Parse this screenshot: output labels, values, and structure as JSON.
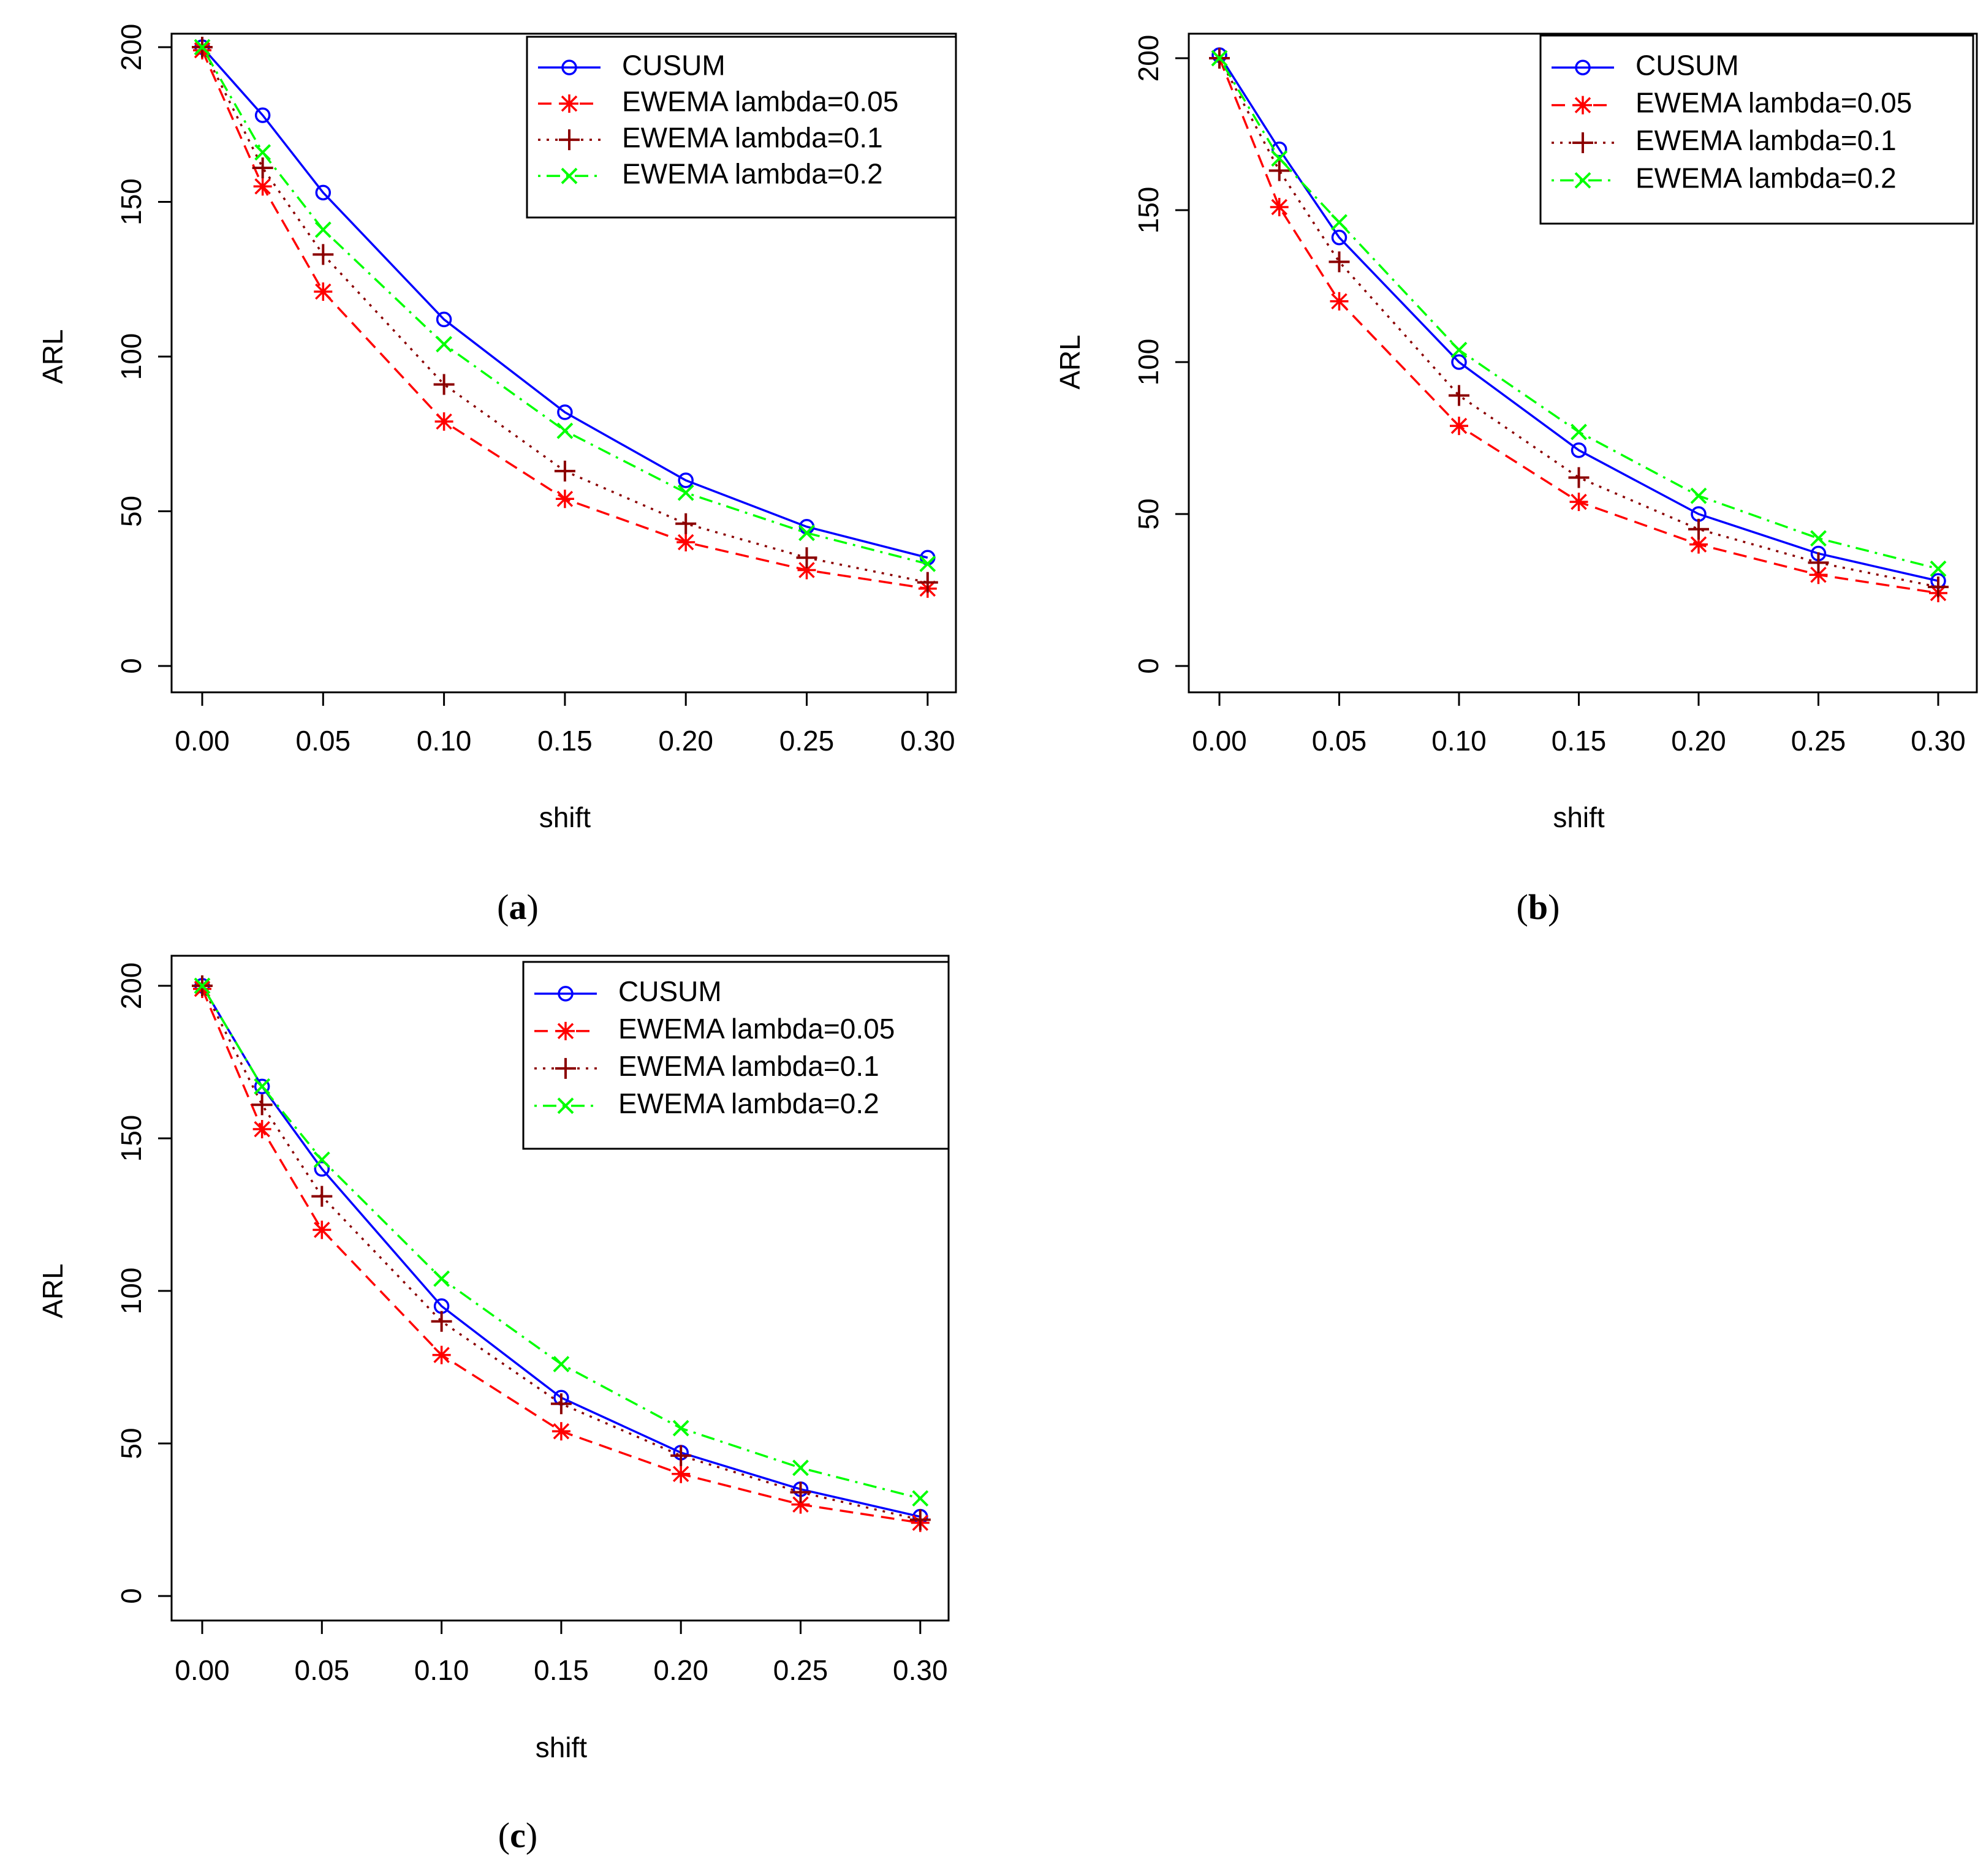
{
  "chart_data": [
    {
      "type": "line",
      "panel_label": "(a)",
      "panel_letter": "a",
      "xlabel": "shift",
      "ylabel": "ARL",
      "x": [
        0.0,
        0.025,
        0.05,
        0.1,
        0.15,
        0.2,
        0.25,
        0.3
      ],
      "x_positions": [
        0,
        0.5,
        1,
        2,
        3,
        4,
        5,
        6
      ],
      "xtick_labels": [
        "0.00",
        "0.05",
        "0.10",
        "0.15",
        "0.20",
        "0.25",
        "0.30"
      ],
      "ytick_values": [
        0,
        50,
        100,
        150,
        200
      ],
      "ytick_labels": [
        "0",
        "50",
        "100",
        "150",
        "200"
      ],
      "ylim": [
        0,
        200
      ],
      "legend_position": "top-right",
      "series": [
        {
          "name": "CUSUM",
          "color": "#0000ff",
          "marker": "circle",
          "line_style": "solid",
          "values": [
            200,
            178,
            153,
            112,
            82,
            60,
            45,
            35
          ]
        },
        {
          "name": "EWEMA lambda=0.05",
          "color": "#ff0000",
          "marker": "asterisk",
          "line_style": "dashed",
          "values": [
            199,
            155,
            121,
            79,
            54,
            40,
            31,
            25
          ]
        },
        {
          "name": "EWEMA lambda=0.1",
          "color": "#8b0000",
          "marker": "plus",
          "line_style": "dotted",
          "values": [
            200,
            161,
            133,
            91,
            63,
            46,
            35,
            27
          ]
        },
        {
          "name": "EWEMA lambda=0.2",
          "color": "#00ff00",
          "marker": "cross",
          "line_style": "dotdash",
          "values": [
            200,
            166,
            141,
            104,
            76,
            56,
            43,
            33
          ]
        }
      ]
    },
    {
      "type": "line",
      "panel_label": "(b)",
      "panel_letter": "b",
      "xlabel": "shift",
      "ylabel": "ARL",
      "x": [
        0.0,
        0.025,
        0.05,
        0.1,
        0.15,
        0.2,
        0.25,
        0.3
      ],
      "x_positions": [
        0,
        0.5,
        1,
        2,
        3,
        4,
        5,
        6
      ],
      "xtick_labels": [
        "0.00",
        "0.05",
        "0.10",
        "0.15",
        "0.20",
        "0.25",
        "0.30"
      ],
      "ytick_values": [
        0,
        50,
        100,
        150,
        200
      ],
      "ytick_labels": [
        "0",
        "50",
        "100",
        "150",
        "200"
      ],
      "ylim": [
        0,
        200
      ],
      "legend_position": "top-right",
      "series": [
        {
          "name": "CUSUM",
          "color": "#0000ff",
          "marker": "circle",
          "line_style": "solid",
          "values": [
            201,
            170,
            141,
            100,
            71,
            50,
            37,
            28
          ]
        },
        {
          "name": "EWEMA lambda=0.05",
          "color": "#ff0000",
          "marker": "asterisk",
          "line_style": "dashed",
          "values": [
            200,
            151,
            120,
            79,
            54,
            40,
            30,
            24
          ]
        },
        {
          "name": "EWEMA lambda=0.1",
          "color": "#8b0000",
          "marker": "plus",
          "line_style": "dotted",
          "values": [
            200,
            163,
            133,
            89,
            62,
            45,
            34,
            26
          ]
        },
        {
          "name": "EWEMA lambda=0.2",
          "color": "#00ff00",
          "marker": "cross",
          "line_style": "dotdash",
          "values": [
            200,
            167,
            146,
            104,
            77,
            56,
            42,
            32
          ]
        }
      ]
    },
    {
      "type": "line",
      "panel_label": "(c)",
      "panel_letter": "c",
      "xlabel": "shift",
      "ylabel": "ARL",
      "x": [
        0.0,
        0.025,
        0.05,
        0.1,
        0.15,
        0.2,
        0.25,
        0.3
      ],
      "x_positions": [
        0,
        0.5,
        1,
        2,
        3,
        4,
        5,
        6
      ],
      "xtick_labels": [
        "0.00",
        "0.05",
        "0.10",
        "0.15",
        "0.20",
        "0.25",
        "0.30"
      ],
      "ytick_values": [
        0,
        50,
        100,
        150,
        200
      ],
      "ytick_labels": [
        "0",
        "50",
        "100",
        "150",
        "200"
      ],
      "ylim": [
        0,
        200
      ],
      "legend_position": "top-right",
      "series": [
        {
          "name": "CUSUM",
          "color": "#0000ff",
          "marker": "circle",
          "line_style": "solid",
          "values": [
            200,
            167,
            140,
            95,
            65,
            47,
            35,
            26
          ]
        },
        {
          "name": "EWEMA lambda=0.05",
          "color": "#ff0000",
          "marker": "asterisk",
          "line_style": "dashed",
          "values": [
            199,
            153,
            120,
            79,
            54,
            40,
            30,
            24
          ]
        },
        {
          "name": "EWEMA lambda=0.1",
          "color": "#8b0000",
          "marker": "plus",
          "line_style": "dotted",
          "values": [
            200,
            161,
            131,
            90,
            63,
            46,
            34,
            25
          ]
        },
        {
          "name": "EWEMA lambda=0.2",
          "color": "#00ff00",
          "marker": "cross",
          "line_style": "dotdash",
          "values": [
            200,
            167,
            143,
            104,
            76,
            55,
            42,
            32
          ]
        }
      ]
    }
  ]
}
